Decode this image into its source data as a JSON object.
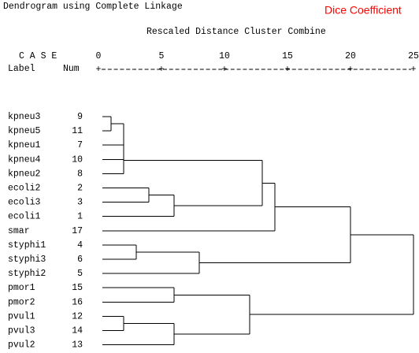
{
  "chart_data": {
    "type": "dendrogram",
    "title": "Dendrogram using Complete Linkage",
    "subtitle": "Dice Coefficient",
    "x_label": "Rescaled Distance Cluster Combine",
    "case_header": "C A S E",
    "label_header": "Label",
    "num_header": "Num",
    "xlim": [
      0,
      25
    ],
    "xticks": [
      0,
      5,
      10,
      15,
      20,
      25
    ],
    "tick_symbol": "+",
    "cases": [
      {
        "label": "kpneu3",
        "num": 9
      },
      {
        "label": "kpneu5",
        "num": 11
      },
      {
        "label": "kpneu1",
        "num": 7
      },
      {
        "label": "kpneu4",
        "num": 10
      },
      {
        "label": "kpneu2",
        "num": 8
      },
      {
        "label": "ecoli2",
        "num": 2
      },
      {
        "label": "ecoli3",
        "num": 3
      },
      {
        "label": "ecoli1",
        "num": 1
      },
      {
        "label": "smar",
        "num": 17
      },
      {
        "label": "styphi1",
        "num": 4
      },
      {
        "label": "styphi3",
        "num": 6
      },
      {
        "label": "styphi2",
        "num": 5
      },
      {
        "label": "pmor1",
        "num": 15
      },
      {
        "label": "pmor2",
        "num": 16
      },
      {
        "label": "pvul1",
        "num": 12
      },
      {
        "label": "pvul3",
        "num": 14
      },
      {
        "label": "pvul2",
        "num": 13
      }
    ],
    "merges": [
      {
        "a": 0,
        "b": 1,
        "height": 1
      },
      {
        "a": 17,
        "b": 2,
        "height": 2
      },
      {
        "a": 18,
        "b": 3,
        "height": 2
      },
      {
        "a": 19,
        "b": 4,
        "height": 2
      },
      {
        "a": 5,
        "b": 6,
        "height": 4
      },
      {
        "a": 21,
        "b": 7,
        "height": 6
      },
      {
        "a": 20,
        "b": 22,
        "height": 13
      },
      {
        "a": 23,
        "b": 8,
        "height": 14
      },
      {
        "a": 9,
        "b": 10,
        "height": 3
      },
      {
        "a": 25,
        "b": 11,
        "height": 8
      },
      {
        "a": 14,
        "b": 15,
        "height": 2
      },
      {
        "a": 27,
        "b": 16,
        "height": 6
      },
      {
        "a": 12,
        "b": 13,
        "height": 6
      },
      {
        "a": 29,
        "b": 28,
        "height": 12
      },
      {
        "a": 24,
        "b": 26,
        "height": 20
      },
      {
        "a": 31,
        "b": 30,
        "height": 25
      }
    ],
    "grid": false
  }
}
